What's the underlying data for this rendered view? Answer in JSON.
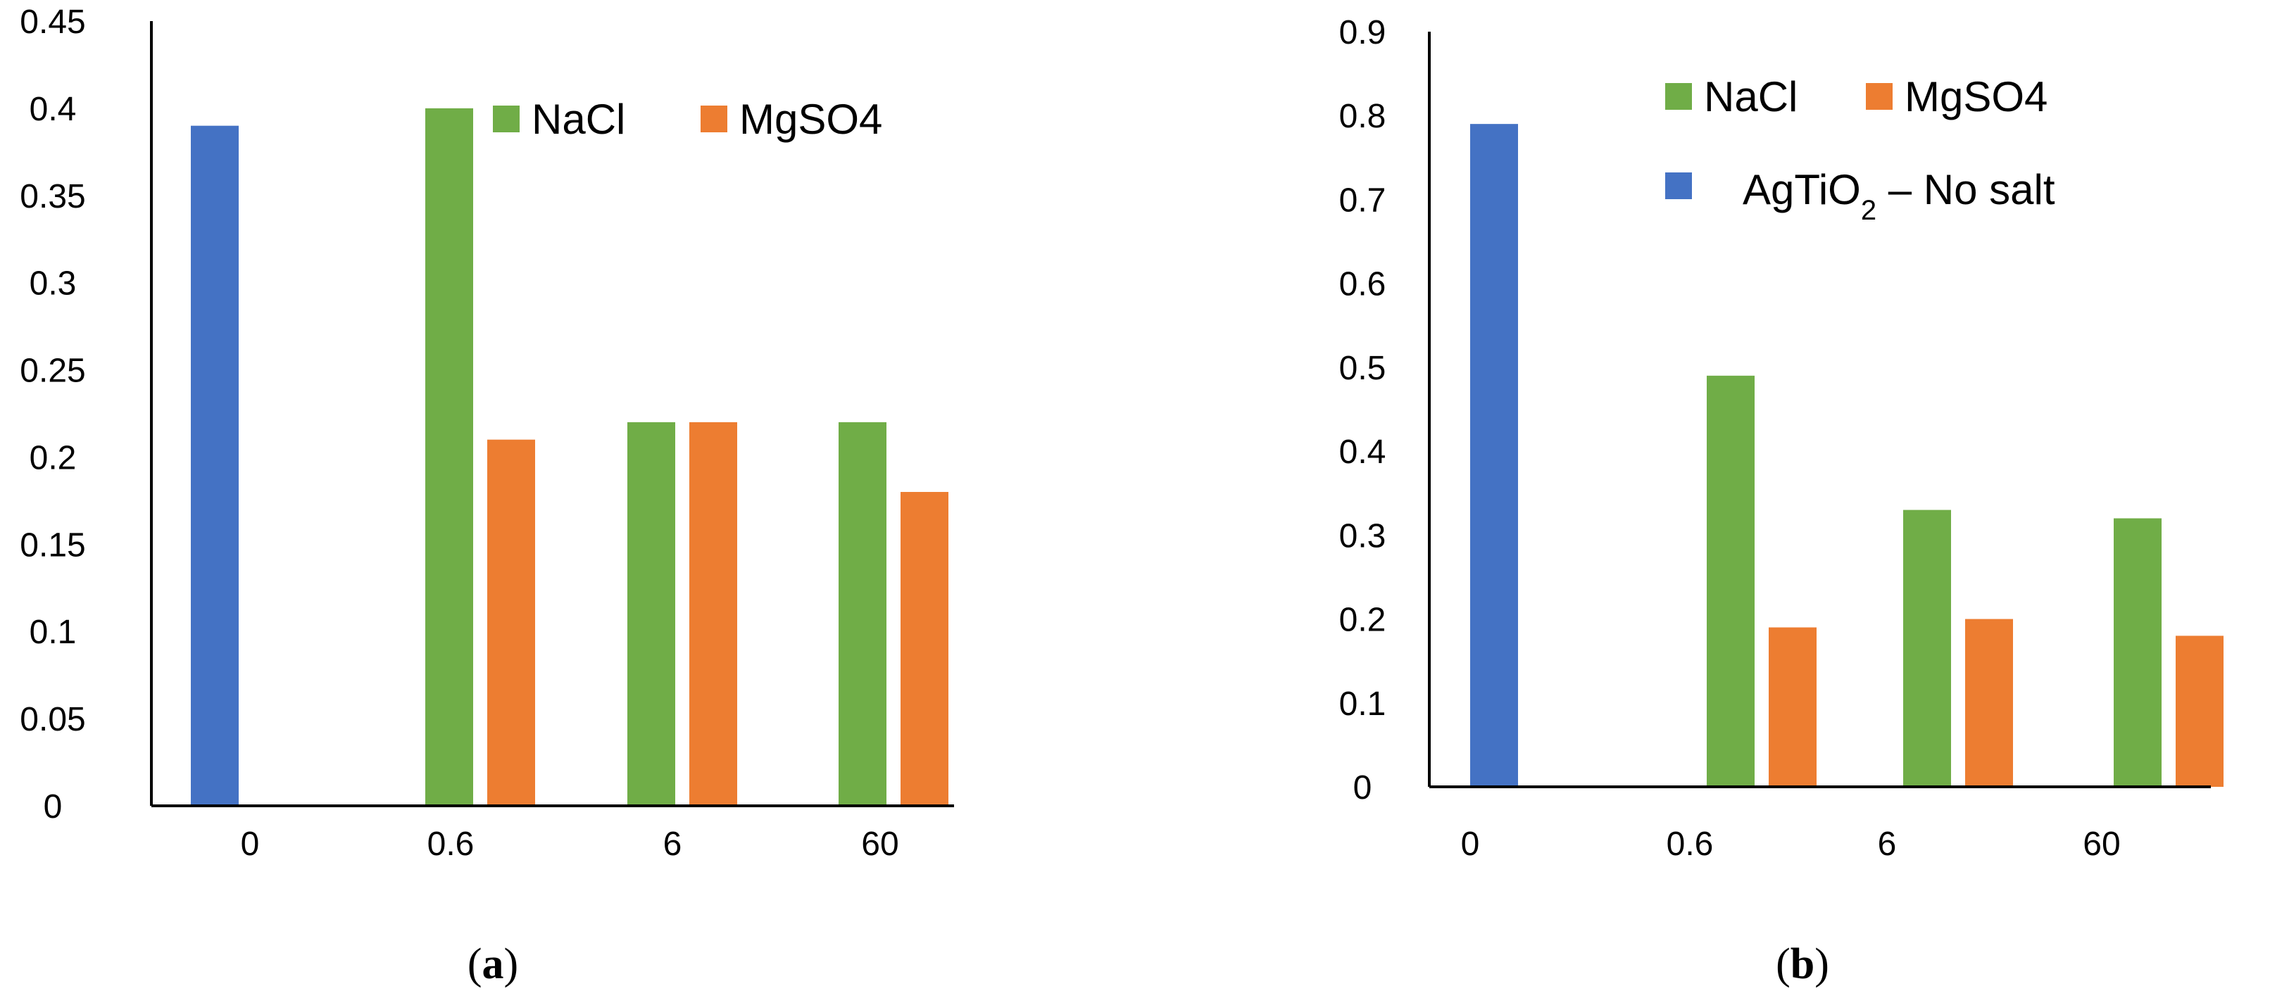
{
  "colors": {
    "no_salt": "#4472C4",
    "nacl": "#70AD47",
    "mgso4": "#ED7D31"
  },
  "chart_data": [
    {
      "type": "bar",
      "panel_label": "a",
      "categories": [
        "0",
        "0.6",
        "6",
        "60"
      ],
      "series": [
        {
          "name": "",
          "values": [
            0.39,
            null,
            null,
            null
          ],
          "color": "#4472C4"
        },
        {
          "name": "NaCl",
          "values": [
            null,
            0.4,
            0.22,
            0.22
          ],
          "color": "#70AD47"
        },
        {
          "name": "MgSO4",
          "values": [
            null,
            0.21,
            0.22,
            0.18
          ],
          "color": "#ED7D31"
        }
      ],
      "ylim": [
        0,
        0.45
      ],
      "yticks": [
        "0",
        "0.05",
        "0.1",
        "0.15",
        "0.2",
        "0.25",
        "0.3",
        "0.35",
        "0.4",
        "0.45"
      ],
      "title": "",
      "xlabel": "",
      "ylabel": "",
      "grid": false,
      "legend": "top-right"
    },
    {
      "type": "bar",
      "panel_label": "b",
      "categories": [
        "0",
        "0.6",
        "6",
        "60"
      ],
      "series": [
        {
          "name": "AgTiO2 – No salt",
          "values": [
            0.79,
            null,
            null,
            null
          ],
          "color": "#4472C4"
        },
        {
          "name": "NaCl",
          "values": [
            null,
            0.49,
            0.33,
            0.32
          ],
          "color": "#70AD47"
        },
        {
          "name": "MgSO4",
          "values": [
            null,
            0.19,
            0.2,
            0.18
          ],
          "color": "#ED7D31"
        }
      ],
      "ylim": [
        0,
        0.9
      ],
      "yticks": [
        "0",
        "0.1",
        "0.2",
        "0.3",
        "0.4",
        "0.5",
        "0.6",
        "0.7",
        "0.8",
        "0.9"
      ],
      "title": "",
      "xlabel": "",
      "ylabel": "",
      "grid": false,
      "legend": "top-right"
    }
  ]
}
